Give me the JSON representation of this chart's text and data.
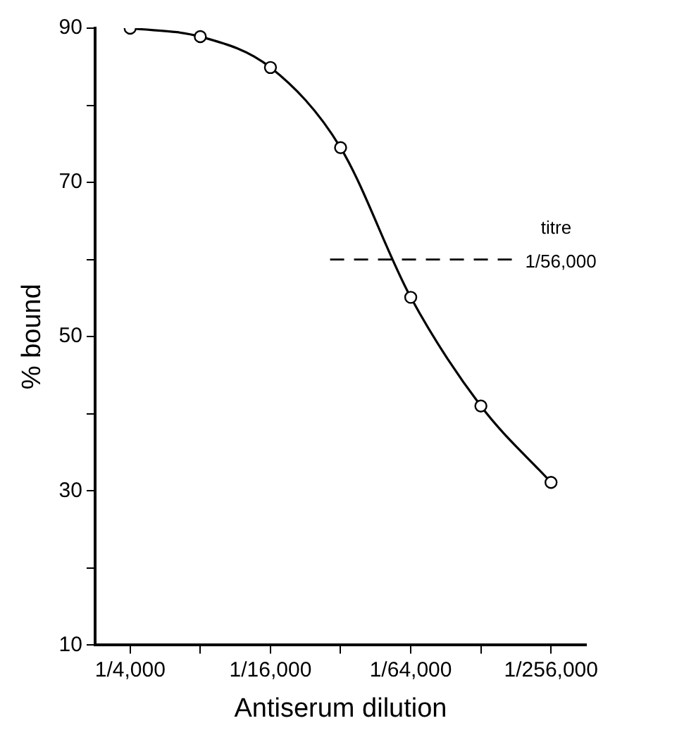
{
  "chart_data": {
    "type": "line",
    "xlabel": "Antiserum dilution",
    "ylabel": "% bound",
    "grid": false,
    "legend": false,
    "marker": "circle",
    "line_style": "solid",
    "categories": [
      "1/4,000",
      null,
      "1/16,000",
      null,
      "1/64,000",
      null,
      "1/256,000"
    ],
    "ylim": [
      10,
      90
    ],
    "yticks": [
      10,
      {
        "value": 20,
        "label": null
      },
      30,
      {
        "value": 40,
        "label": null
      },
      50,
      {
        "value": 60,
        "label": null
      },
      70,
      {
        "value": 80,
        "label": null
      },
      90
    ],
    "series": [
      {
        "color": "#000000",
        "values": [
          90,
          88.9,
          84.9,
          74.5,
          55.1,
          41,
          31.1
        ]
      }
    ],
    "ref_lines": [
      {
        "axis": "y",
        "value": 60,
        "label": "titre",
        "line_style": "dashed",
        "color": "#000000"
      }
    ],
    "annotations": [
      "1/56,000"
    ]
  }
}
